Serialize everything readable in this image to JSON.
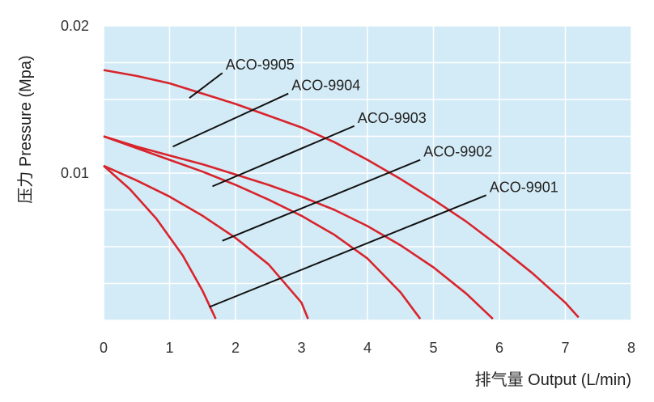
{
  "chart_data": {
    "type": "line",
    "title": "",
    "xlabel": "排气量 Output (L/min)",
    "ylabel": "压力 Pressure (Mpa)",
    "xlim": [
      0,
      8
    ],
    "ylim": [
      0,
      0.02
    ],
    "x_ticks": [
      "0",
      "1",
      "2",
      "3",
      "4",
      "5",
      "6",
      "7",
      "8"
    ],
    "y_ticks": [
      "0.02",
      "0.01"
    ],
    "grid": true,
    "colors": {
      "plot_background": "#d3ebf6",
      "grid": "#ffffff",
      "series": "#d8242c",
      "leader": "#111111"
    },
    "series": [
      {
        "name": "ACO-9905",
        "x": [
          0,
          0.5,
          1,
          1.5,
          2,
          2.5,
          3,
          3.5,
          4,
          4.5,
          5,
          5.5,
          6,
          6.5,
          7,
          7.2
        ],
        "y": [
          0.017,
          0.0166,
          0.0161,
          0.0154,
          0.0147,
          0.0139,
          0.0131,
          0.0121,
          0.0109,
          0.0096,
          0.0082,
          0.0067,
          0.005,
          0.0032,
          0.0012,
          0.0002
        ]
      },
      {
        "name": "ACO-9904",
        "x": [
          0,
          0.5,
          1,
          1.5,
          2,
          2.5,
          3,
          3.5,
          4,
          4.5,
          5,
          5.5,
          5.9
        ],
        "y": [
          0.0125,
          0.0118,
          0.0112,
          0.0106,
          0.0099,
          0.0092,
          0.0084,
          0.0075,
          0.0064,
          0.0051,
          0.0036,
          0.0018,
          0.0001
        ]
      },
      {
        "name": "ACO-9903",
        "x": [
          0,
          0.5,
          1,
          1.5,
          2,
          2.5,
          3,
          3.5,
          4,
          4.5,
          4.8
        ],
        "y": [
          0.0125,
          0.0117,
          0.0109,
          0.0101,
          0.0092,
          0.0082,
          0.0071,
          0.0058,
          0.0042,
          0.0019,
          0.0001
        ]
      },
      {
        "name": "ACO-9902",
        "x": [
          0,
          0.5,
          1,
          1.5,
          2,
          2.5,
          3,
          3.1
        ],
        "y": [
          0.0105,
          0.0095,
          0.0084,
          0.0071,
          0.0056,
          0.0038,
          0.0012,
          0.0001
        ]
      },
      {
        "name": "ACO-9901",
        "x": [
          0,
          0.4,
          0.8,
          1.2,
          1.5,
          1.7
        ],
        "y": [
          0.0105,
          0.0089,
          0.0069,
          0.0044,
          0.002,
          0.0001
        ]
      }
    ],
    "annotations": [
      {
        "text": "ACO-9905",
        "target_series": "ACO-9905",
        "label_x": 1.8,
        "label_y": 0.0168,
        "point_x": 1.3,
        "point_y": 0.0151
      },
      {
        "text": "ACO-9904",
        "target_series": "ACO-9905",
        "label_x": 2.8,
        "label_y": 0.0154,
        "point_x": 1.05,
        "point_y": 0.0118
      },
      {
        "text": "ACO-9903",
        "target_series": "ACO-9904",
        "label_x": 3.8,
        "label_y": 0.0132,
        "point_x": 1.65,
        "point_y": 0.0091
      },
      {
        "text": "ACO-9902",
        "target_series": "ACO-9903",
        "label_x": 4.8,
        "label_y": 0.0109,
        "point_x": 1.8,
        "point_y": 0.0054
      },
      {
        "text": "ACO-9901",
        "target_series": "ACO-9902",
        "label_x": 5.8,
        "label_y": 0.0085,
        "point_x": 1.6,
        "point_y": 0.0009
      }
    ]
  }
}
